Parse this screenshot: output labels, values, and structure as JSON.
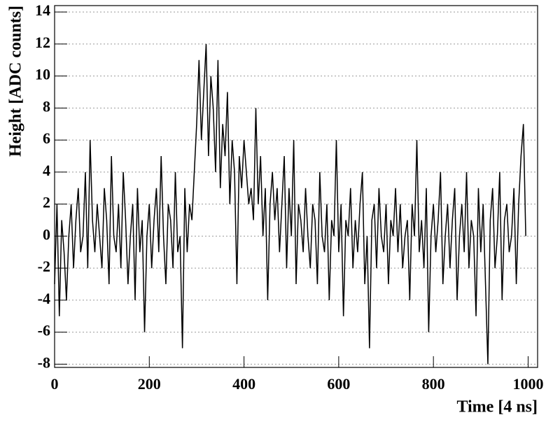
{
  "chart_data": {
    "type": "line",
    "x_label": "Time [4 ns]",
    "y_label": "Height [ADC counts]",
    "x": [
      0,
      5,
      10,
      15,
      20,
      25,
      30,
      35,
      40,
      45,
      50,
      55,
      60,
      65,
      70,
      75,
      80,
      85,
      90,
      95,
      100,
      105,
      110,
      115,
      120,
      125,
      130,
      135,
      140,
      145,
      150,
      155,
      160,
      165,
      170,
      175,
      180,
      185,
      190,
      195,
      200,
      205,
      210,
      215,
      220,
      225,
      230,
      235,
      240,
      245,
      250,
      255,
      260,
      265,
      270,
      275,
      280,
      285,
      290,
      295,
      300,
      305,
      310,
      315,
      320,
      325,
      330,
      335,
      340,
      345,
      350,
      355,
      360,
      365,
      370,
      375,
      380,
      385,
      390,
      395,
      400,
      405,
      410,
      415,
      420,
      425,
      430,
      435,
      440,
      445,
      450,
      455,
      460,
      465,
      470,
      475,
      480,
      485,
      490,
      495,
      500,
      505,
      510,
      515,
      520,
      525,
      530,
      535,
      540,
      545,
      550,
      555,
      560,
      565,
      570,
      575,
      580,
      585,
      590,
      595,
      600,
      605,
      610,
      615,
      620,
      625,
      630,
      635,
      640,
      645,
      650,
      655,
      660,
      665,
      670,
      675,
      680,
      685,
      690,
      695,
      700,
      705,
      710,
      715,
      720,
      725,
      730,
      735,
      740,
      745,
      750,
      755,
      760,
      765,
      770,
      775,
      780,
      785,
      790,
      795,
      800,
      805,
      810,
      815,
      820,
      825,
      830,
      835,
      840,
      845,
      850,
      855,
      860,
      865,
      870,
      875,
      880,
      885,
      890,
      895,
      900,
      905,
      910,
      915,
      920,
      925,
      930,
      935,
      940,
      945,
      950,
      955,
      960,
      965,
      970,
      975,
      980,
      985,
      990,
      995
    ],
    "values": [
      -3,
      2,
      -5,
      1,
      -1,
      -4,
      0,
      2,
      -2,
      1,
      3,
      -1,
      0,
      4,
      -2,
      6,
      1,
      -1,
      2,
      0,
      -2,
      3,
      1,
      -3,
      5,
      0,
      -1,
      2,
      -2,
      4,
      1,
      -3,
      0,
      2,
      -4,
      3,
      -1,
      1,
      -6,
      0,
      2,
      -2,
      1,
      3,
      -1,
      5,
      0,
      -3,
      2,
      1,
      -2,
      4,
      -1,
      0,
      -7,
      3,
      -1,
      2,
      1,
      4,
      7,
      11,
      6,
      9,
      12,
      5,
      10,
      8,
      4,
      11,
      3,
      7,
      5,
      9,
      2,
      6,
      4,
      -3,
      5,
      3,
      6,
      4,
      2,
      3,
      1,
      8,
      2,
      5,
      0,
      3,
      -4,
      2,
      4,
      1,
      3,
      -1,
      2,
      5,
      -2,
      3,
      0,
      6,
      -3,
      2,
      1,
      -1,
      3,
      0,
      -2,
      2,
      1,
      -3,
      4,
      0,
      -1,
      2,
      -4,
      1,
      0,
      6,
      -1,
      2,
      -5,
      1,
      0,
      3,
      -2,
      1,
      -1,
      2,
      4,
      -3,
      0,
      -7,
      1,
      2,
      -2,
      3,
      0,
      -1,
      2,
      -3,
      1,
      0,
      3,
      -1,
      2,
      -2,
      0,
      1,
      -4,
      2,
      0,
      6,
      -1,
      1,
      -2,
      3,
      -6,
      0,
      2,
      -1,
      1,
      4,
      -3,
      0,
      2,
      -2,
      1,
      3,
      -4,
      0,
      2,
      -1,
      4,
      -2,
      1,
      0,
      -5,
      3,
      -1,
      2,
      -3,
      -8,
      1,
      3,
      -2,
      0,
      4,
      -4,
      1,
      2,
      -1,
      0,
      3,
      -3,
      2,
      5,
      7,
      0
    ],
    "color": "#000000",
    "xlim": [
      0,
      1020
    ],
    "xticks": [
      0,
      200,
      400,
      600,
      800,
      1000
    ],
    "ylim": [
      -8.2,
      14.4
    ],
    "yticks": [
      -8,
      -6,
      -4,
      -2,
      0,
      2,
      4,
      6,
      8,
      10,
      12,
      14
    ],
    "grid": true
  }
}
